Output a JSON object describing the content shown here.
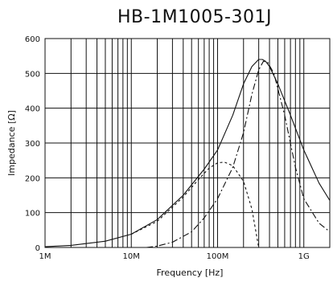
{
  "chart_data": {
    "type": "line",
    "title": "HB-1M1005-301J",
    "xlabel": "Frequency  [Hz]",
    "ylabel": "Impedance [Ω]",
    "x_scale": "log",
    "xlim": [
      1000000,
      2000000000
    ],
    "ylim": [
      0,
      600
    ],
    "grid": true,
    "x_ticks": [
      {
        "value": 1000000,
        "label": "1M"
      },
      {
        "value": 10000000,
        "label": "10M"
      },
      {
        "value": 100000000,
        "label": "100M"
      },
      {
        "value": 1000000000,
        "label": "1G"
      }
    ],
    "y_ticks": [
      {
        "value": 0,
        "label": "0"
      },
      {
        "value": 100,
        "label": "100"
      },
      {
        "value": 200,
        "label": "200"
      },
      {
        "value": 300,
        "label": "300"
      },
      {
        "value": 400,
        "label": "400"
      },
      {
        "value": 500,
        "label": "500"
      },
      {
        "value": 600,
        "label": "600"
      }
    ],
    "series": [
      {
        "style": "solid",
        "x": [
          1000000,
          2000000,
          5000000,
          10000000,
          20000000,
          40000000,
          70000000,
          100000000,
          150000000,
          200000000,
          250000000,
          300000000,
          330000000,
          360000000,
          400000000,
          500000000,
          700000000,
          1000000000,
          1500000000,
          2000000000
        ],
        "y": [
          2,
          6,
          18,
          38,
          80,
          150,
          225,
          280,
          380,
          470,
          520,
          540,
          540,
          535,
          520,
          470,
          380,
          280,
          185,
          135
        ]
      },
      {
        "style": "dashdot",
        "x": [
          15000000,
          20000000,
          30000000,
          50000000,
          70000000,
          100000000,
          150000000,
          200000000,
          250000000,
          300000000,
          340000000,
          380000000,
          450000000,
          600000000,
          800000000,
          1000000000,
          1500000000,
          2000000000
        ],
        "y": [
          0,
          4,
          15,
          45,
          85,
          140,
          230,
          330,
          440,
          510,
          535,
          532,
          500,
          380,
          230,
          140,
          70,
          45
        ]
      },
      {
        "style": "dashed",
        "x": [
          10000000,
          20000000,
          40000000,
          60000000,
          80000000,
          100000000,
          120000000,
          150000000,
          200000000,
          250000000,
          300000000
        ],
        "y": [
          38,
          75,
          145,
          195,
          228,
          243,
          245,
          235,
          190,
          110,
          0
        ]
      }
    ]
  }
}
